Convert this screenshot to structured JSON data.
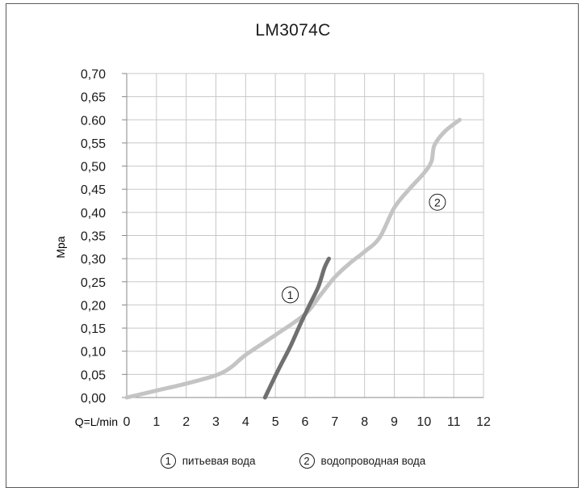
{
  "chart_data": {
    "type": "line",
    "title": "LM3074C",
    "ylabel": "Mpa",
    "xlabel": "Q=L/min",
    "xlim": [
      0,
      12
    ],
    "ylim": [
      0,
      0.7
    ],
    "x_ticks": [
      "0",
      "1",
      "2",
      "3",
      "4",
      "5",
      "6",
      "7",
      "8",
      "9",
      "10",
      "11",
      "12"
    ],
    "y_ticks": [
      "0,00",
      "0,05",
      "0,10",
      "0,15",
      "0,20",
      "0,25",
      "0,30",
      "0,35",
      "0,40",
      "0,45",
      "0,50",
      "0,55",
      "0.60",
      "0,65",
      "0,70"
    ],
    "grid": true,
    "series": [
      {
        "name": "питьевая вода",
        "marker": "1",
        "color": "#707070",
        "points": [
          [
            4.65,
            0.0
          ],
          [
            5.1,
            0.06
          ],
          [
            5.5,
            0.11
          ],
          [
            5.85,
            0.16
          ],
          [
            6.15,
            0.2
          ],
          [
            6.45,
            0.24
          ],
          [
            6.65,
            0.28
          ],
          [
            6.8,
            0.3
          ]
        ]
      },
      {
        "name": "водопроводная вода",
        "marker": "2",
        "color": "#c4c4c4",
        "points": [
          [
            0,
            0.0
          ],
          [
            1,
            0.015
          ],
          [
            2,
            0.03
          ],
          [
            3,
            0.048
          ],
          [
            3.5,
            0.065
          ],
          [
            4.0,
            0.092
          ],
          [
            5.0,
            0.135
          ],
          [
            6.0,
            0.18
          ],
          [
            6.5,
            0.22
          ],
          [
            7.0,
            0.26
          ],
          [
            7.5,
            0.29
          ],
          [
            8.0,
            0.315
          ],
          [
            8.5,
            0.345
          ],
          [
            9.0,
            0.41
          ],
          [
            9.5,
            0.45
          ],
          [
            10.0,
            0.485
          ],
          [
            10.25,
            0.51
          ],
          [
            10.35,
            0.545
          ],
          [
            10.7,
            0.575
          ],
          [
            11.2,
            0.6
          ]
        ]
      }
    ],
    "annotations": [
      {
        "text": "1",
        "x": 5.5,
        "y": 0.222
      },
      {
        "text": "2",
        "x": 10.45,
        "y": 0.422
      }
    ],
    "legend_position": "bottom"
  }
}
